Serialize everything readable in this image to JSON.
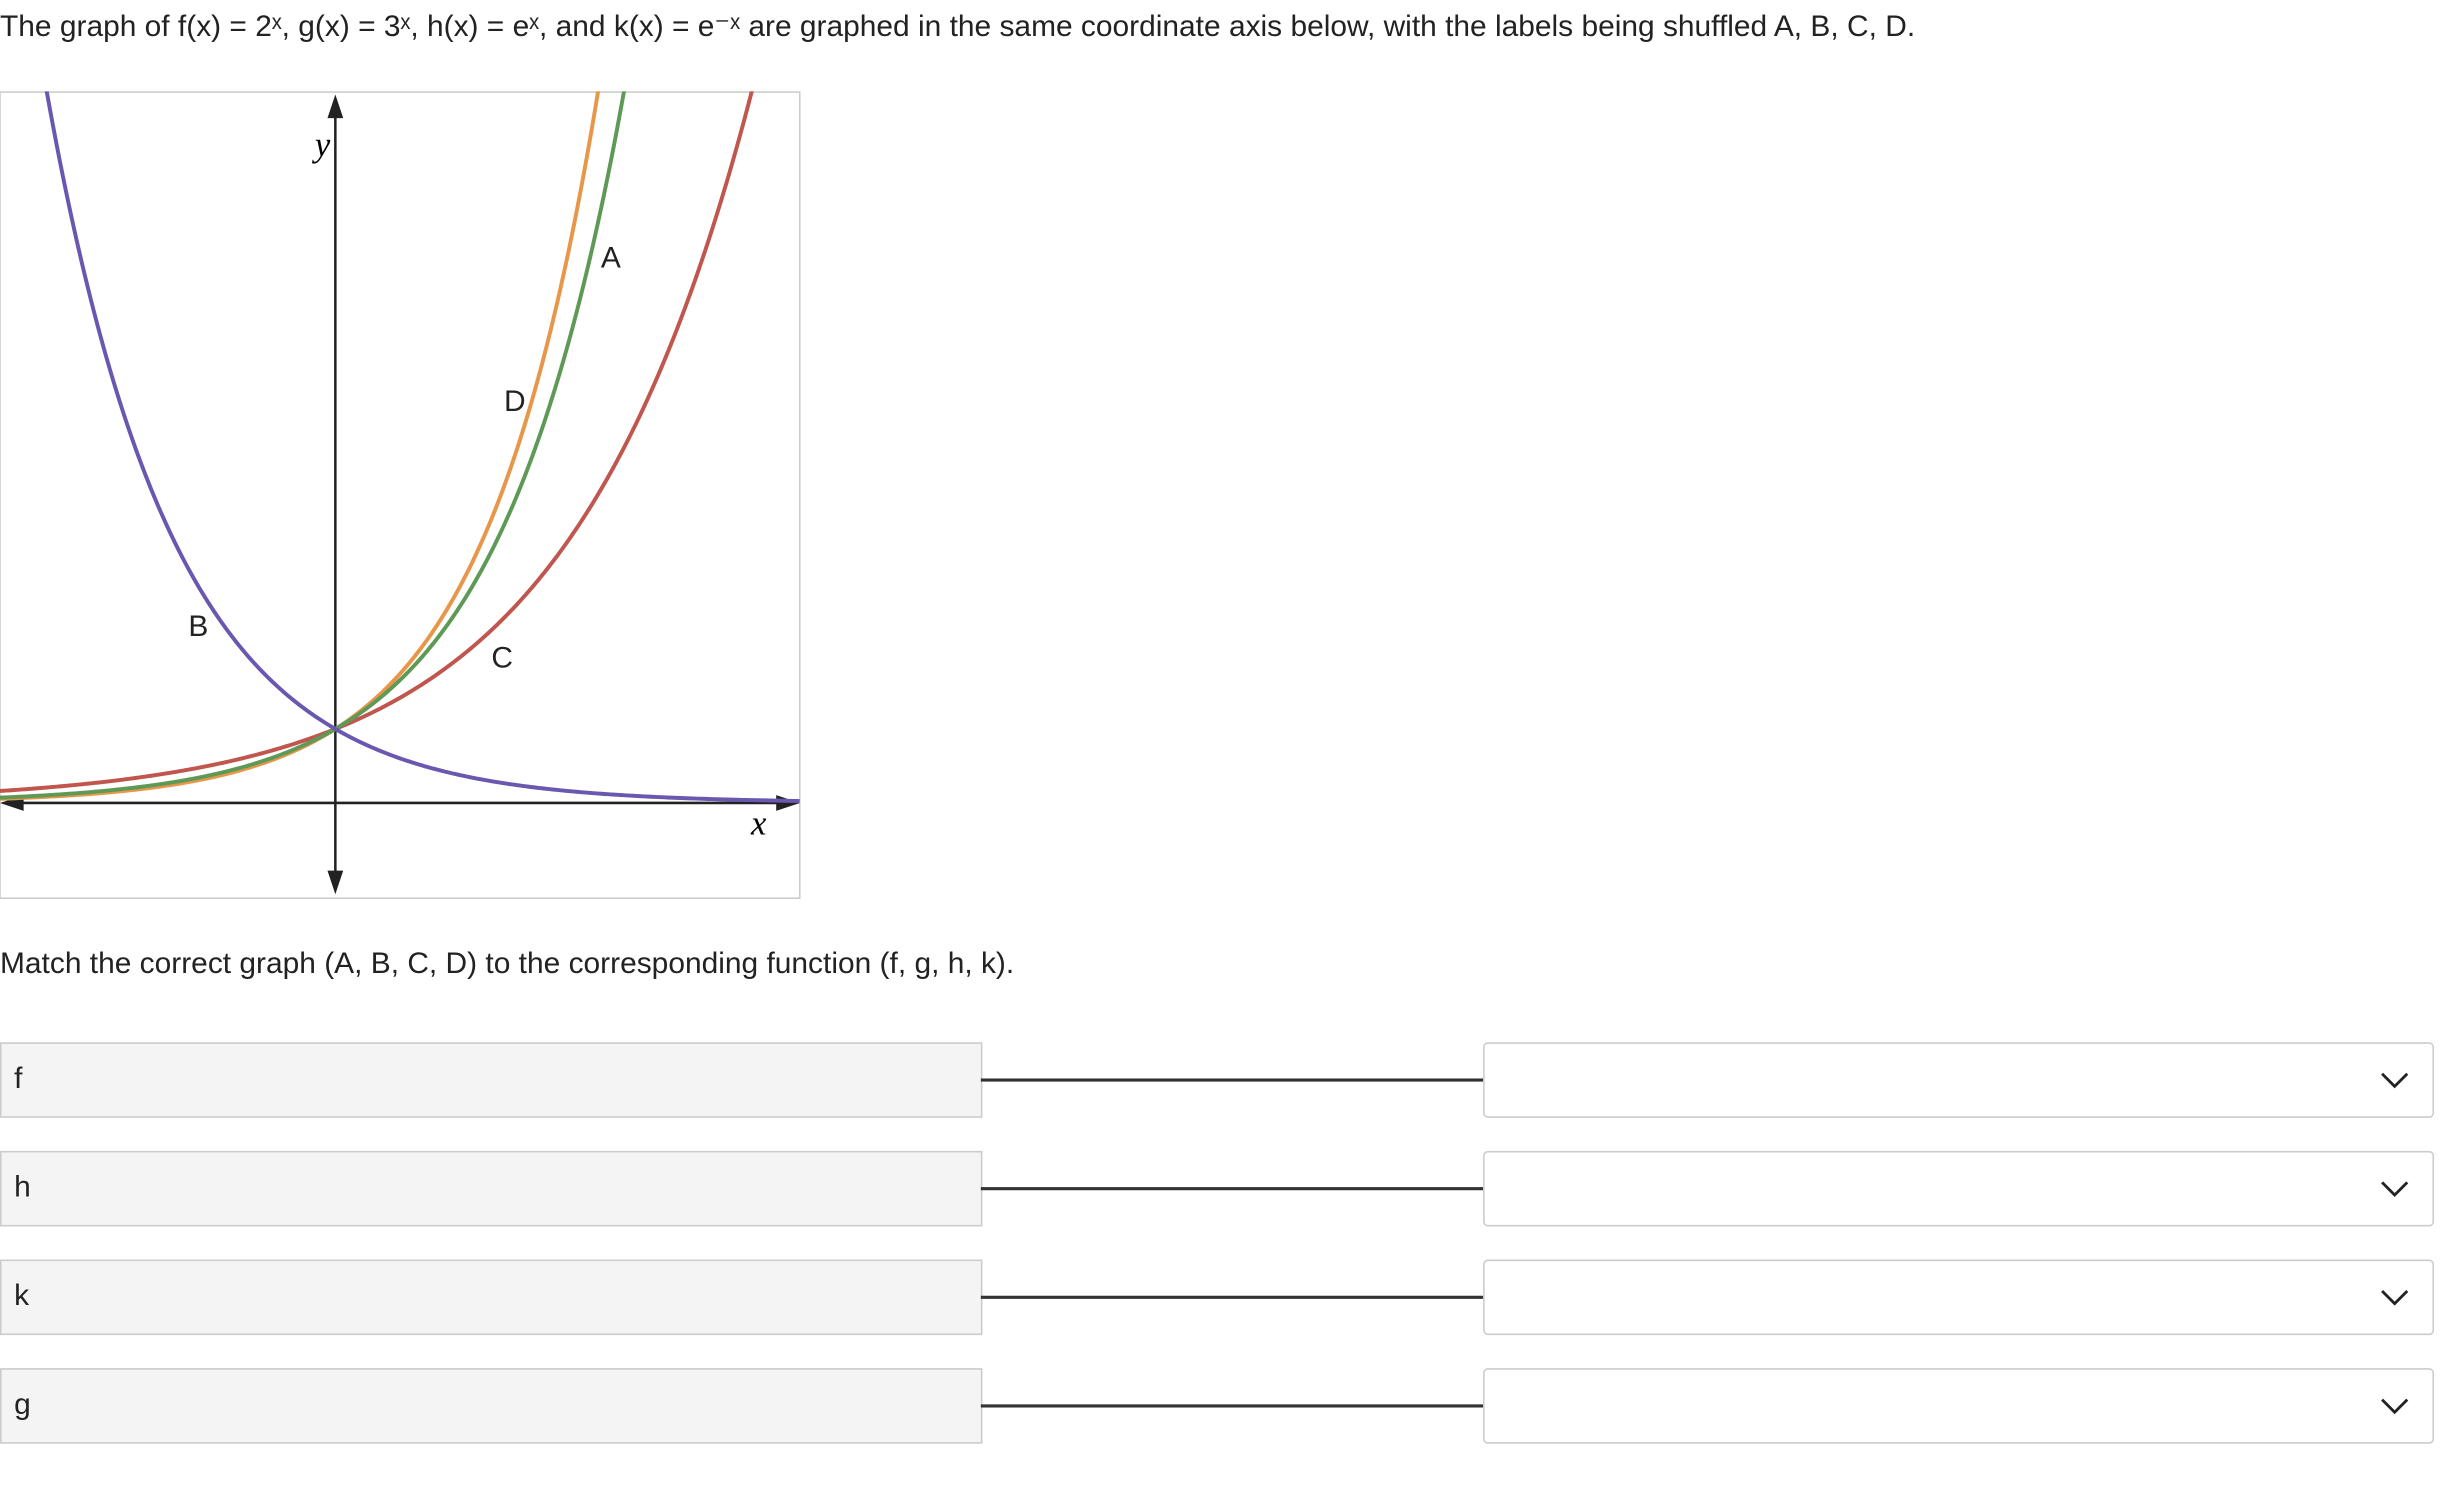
{
  "question": "The graph of f(x) = 2ˣ, g(x) = 3ˣ, h(x) = eˣ, and k(x) = e⁻ˣ are graphed in the same coordinate axis below, with the labels being shuffled A, B, C, D.",
  "graph": {
    "labels": [
      "A",
      "B",
      "C",
      "D"
    ],
    "x_axis": "x",
    "y_axis": "y"
  },
  "instruction": "Match the correct graph (A, B, C, D) to the corresponding function (f, g, h, k).",
  "rows": [
    "f",
    "h",
    "k",
    "g"
  ]
}
